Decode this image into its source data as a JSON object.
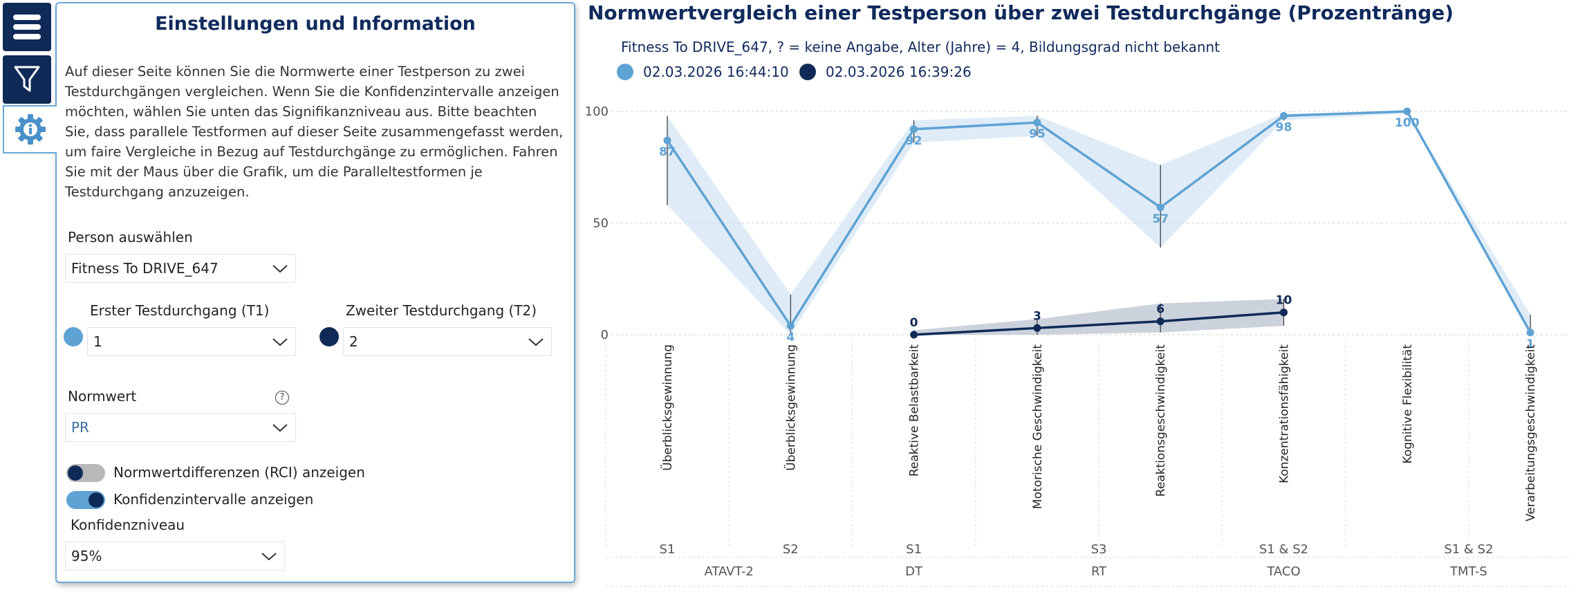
{
  "rail": {
    "menu_icon": "hamburger-menu-icon",
    "filter_icon": "funnel-filter-icon",
    "settings_icon": "gear-info-icon"
  },
  "panel": {
    "title": "Einstellungen und Information",
    "description": "Auf dieser Seite können Sie die Normwerte einer Testperson zu zwei Testdurchgängen vergleichen. Wenn Sie die Konfidenzintervalle anzeigen möchten, wählen Sie unten das Signifikanzniveau aus. Bitte beachten Sie, dass parallele Testformen auf dieser Seite zusammengefasst werden, um faire Vergleiche in Bezug auf Testdurchgänge zu ermöglichen. Fahren Sie mit der Maus über die Grafik, um die Paralleltestformen je Testdurchgang anzuzeigen.",
    "person_label": "Person auswählen",
    "person_value": "Fitness To DRIVE_647",
    "t1_label": "Erster Testdurchgang (T1)",
    "t1_value": "1",
    "t2_label": "Zweiter Testdurchgang (T2)",
    "t2_value": "2",
    "normwert_label": "Normwert",
    "normwert_value": "PR",
    "help_glyph": "?",
    "rci_label": "Normwertdifferenzen (RCI) anzeigen",
    "rci_on": false,
    "ci_label": "Konfidenzintervalle anzeigen",
    "ci_on": true,
    "level_label": "Konfidenzniveau",
    "level_value": "95%",
    "colors": {
      "t1": "#5fa2d4",
      "t2": "#0f2a57"
    }
  },
  "chart_data": {
    "type": "line",
    "title": "Normwertvergleich einer Testperson über zwei Testdurchgänge (Prozentränge)",
    "subtitle": "Fitness To DRIVE_647, ? = keine Angabe, Alter (Jahre) = 4, Bildungsgrad nicht bekannt",
    "ylim": [
      0,
      100
    ],
    "yticks": [
      0,
      50,
      100
    ],
    "categories": [
      "Überblicksgewinnung",
      "Überblicksgewinnung",
      "Reaktive Belastbarkeit",
      "Motorische Geschwindigkeit",
      "Reaktionsgeschwindigkeit",
      "Konzentrationsfähigkeit",
      "Kognitive Flexibilität",
      "Verarbeitungsgeschwindigkeit"
    ],
    "subtests": [
      {
        "label": "S1",
        "span": [
          0,
          0
        ]
      },
      {
        "label": "S2",
        "span": [
          1,
          1
        ]
      },
      {
        "label": "S1",
        "span": [
          2,
          2
        ]
      },
      {
        "label": "S3",
        "span": [
          3,
          4
        ]
      },
      {
        "label": "S1 & S2",
        "span": [
          5,
          5
        ]
      },
      {
        "label": "S1 & S2",
        "span": [
          6,
          7
        ]
      }
    ],
    "tests": [
      {
        "label": "ATAVT-2",
        "span": [
          0,
          1
        ]
      },
      {
        "label": "DT",
        "span": [
          2,
          2
        ]
      },
      {
        "label": "RT",
        "span": [
          3,
          4
        ]
      },
      {
        "label": "TACO",
        "span": [
          5,
          5
        ]
      },
      {
        "label": "TMT-S",
        "span": [
          6,
          7
        ]
      }
    ],
    "series": [
      {
        "name": "02.03.2026 16:44:10",
        "color": "#5fa2d4",
        "values": [
          87,
          4,
          92,
          95,
          57,
          98,
          100,
          1
        ],
        "labels": [
          "87",
          "4",
          "92",
          "95",
          "57",
          "98",
          "100",
          "1"
        ],
        "ci_low": [
          58,
          0,
          86,
          89,
          39,
          96,
          99,
          0
        ],
        "ci_high": [
          98,
          18,
          96,
          98,
          76,
          99,
          100,
          9
        ]
      },
      {
        "name": "02.03.2026 16:39:26",
        "color": "#0f2a57",
        "values": [
          null,
          null,
          0,
          3,
          6,
          10,
          null,
          null
        ],
        "labels": [
          "",
          "",
          "0",
          "3",
          "6",
          "10",
          "",
          ""
        ],
        "ci_low": [
          null,
          null,
          0,
          0,
          1,
          4,
          null,
          null
        ],
        "ci_high": [
          null,
          null,
          2,
          7,
          14,
          16,
          null,
          null
        ]
      }
    ]
  }
}
